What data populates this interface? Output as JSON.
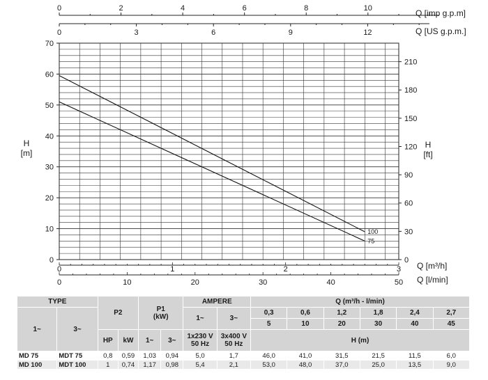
{
  "chart_data": {
    "type": "line",
    "ylabel_left": [
      "H",
      "[m]"
    ],
    "ylabel_right": [
      "H",
      "[ft]"
    ],
    "xlabel_bottom": "Q [l/min]",
    "xlabel_m3h": "Q [m³/h]",
    "xlabel_top_imp": "Q [imp g.p.m]",
    "xlabel_top_us": "Q [US g.p.m.]",
    "xlim": [
      0,
      50
    ],
    "ylim": [
      0,
      70
    ],
    "grid": true,
    "x_ticks_lmin": [
      0,
      10,
      20,
      30,
      40,
      50
    ],
    "x_ticks_m3h": [
      0,
      1,
      2,
      3
    ],
    "x_ticks_imp": [
      0,
      2,
      4,
      6,
      8,
      10
    ],
    "x_ticks_us": [
      0,
      3,
      6,
      9,
      12
    ],
    "y_ticks_m": [
      0,
      10,
      20,
      30,
      40,
      50,
      60,
      70
    ],
    "y_ticks_ft": [
      0,
      30,
      60,
      90,
      120,
      150,
      180,
      210
    ],
    "series": [
      {
        "name": "100",
        "x": [
          0,
          45
        ],
        "y": [
          59.5,
          9
        ]
      },
      {
        "name": "75",
        "x": [
          0,
          45
        ],
        "y": [
          51,
          6
        ]
      }
    ]
  },
  "table": {
    "type_header": "TYPE",
    "p2_header": "P2",
    "p1_header_line1": "P1",
    "p1_header_line2": "(kW)",
    "ampere_header": "AMPERE",
    "q_header": "Q (m³/h - l/min)",
    "type_1": "1~",
    "type_3": "3~",
    "p2_hp": "HP",
    "p2_kw": "kW",
    "p1_1": "1~",
    "p1_3": "3~",
    "amp_1": "1~",
    "amp_3": "3~",
    "amp_1_sub_a": "1x230 V",
    "amp_1_sub_b": "50 Hz",
    "amp_3_sub_a": "3x400 V",
    "amp_3_sub_b": "50 Hz",
    "q_m3h": [
      "0,3",
      "0,6",
      "1,2",
      "1,8",
      "2,4",
      "2,7"
    ],
    "q_lmin": [
      "5",
      "10",
      "20",
      "30",
      "40",
      "45"
    ],
    "h_header": "H (m)",
    "rows": [
      {
        "t1": "MD 75",
        "t3": "MDT 75",
        "hp": "0,8",
        "kw": "0,59",
        "p1_1": "1,03",
        "p1_3": "0,94",
        "a1": "5,0",
        "a3": "1,7",
        "h": [
          "46,0",
          "41,0",
          "31,5",
          "21,5",
          "11,5",
          "6,0"
        ]
      },
      {
        "t1": "MD 100",
        "t3": "MDT 100",
        "hp": "1",
        "kw": "0,74",
        "p1_1": "1,17",
        "p1_3": "0,98",
        "a1": "5,4",
        "a3": "2,1",
        "h": [
          "53,0",
          "48,0",
          "37,0",
          "25,0",
          "13,5",
          "9,0"
        ]
      }
    ]
  }
}
